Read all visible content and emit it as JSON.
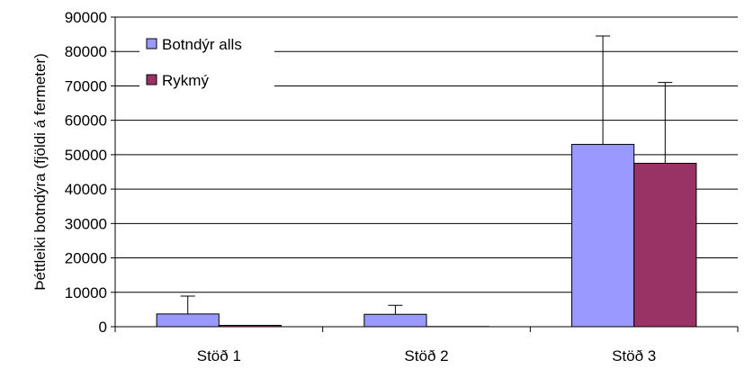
{
  "chart_data": {
    "type": "bar",
    "categories": [
      "Stöð 1",
      "Stöð 2",
      "Stöð 3"
    ],
    "series": [
      {
        "name": "Botndýr alls",
        "values": [
          3700,
          3600,
          53000
        ],
        "errors": [
          5200,
          2600,
          31500
        ],
        "color": "#9999ff"
      },
      {
        "name": "Rykmý",
        "values": [
          400,
          50,
          47500
        ],
        "errors": [
          0,
          0,
          23500
        ],
        "color": "#993366"
      }
    ],
    "ylabel": "Þéttleiki botndýra (fjöldi á fermeter)",
    "xlabel": "",
    "ylim": [
      0,
      90000
    ],
    "yticks": [
      "0",
      "10000",
      "20000",
      "30000",
      "40000",
      "50000",
      "60000",
      "70000",
      "80000",
      "90000"
    ],
    "grid": true,
    "legend_position": "top-left"
  }
}
